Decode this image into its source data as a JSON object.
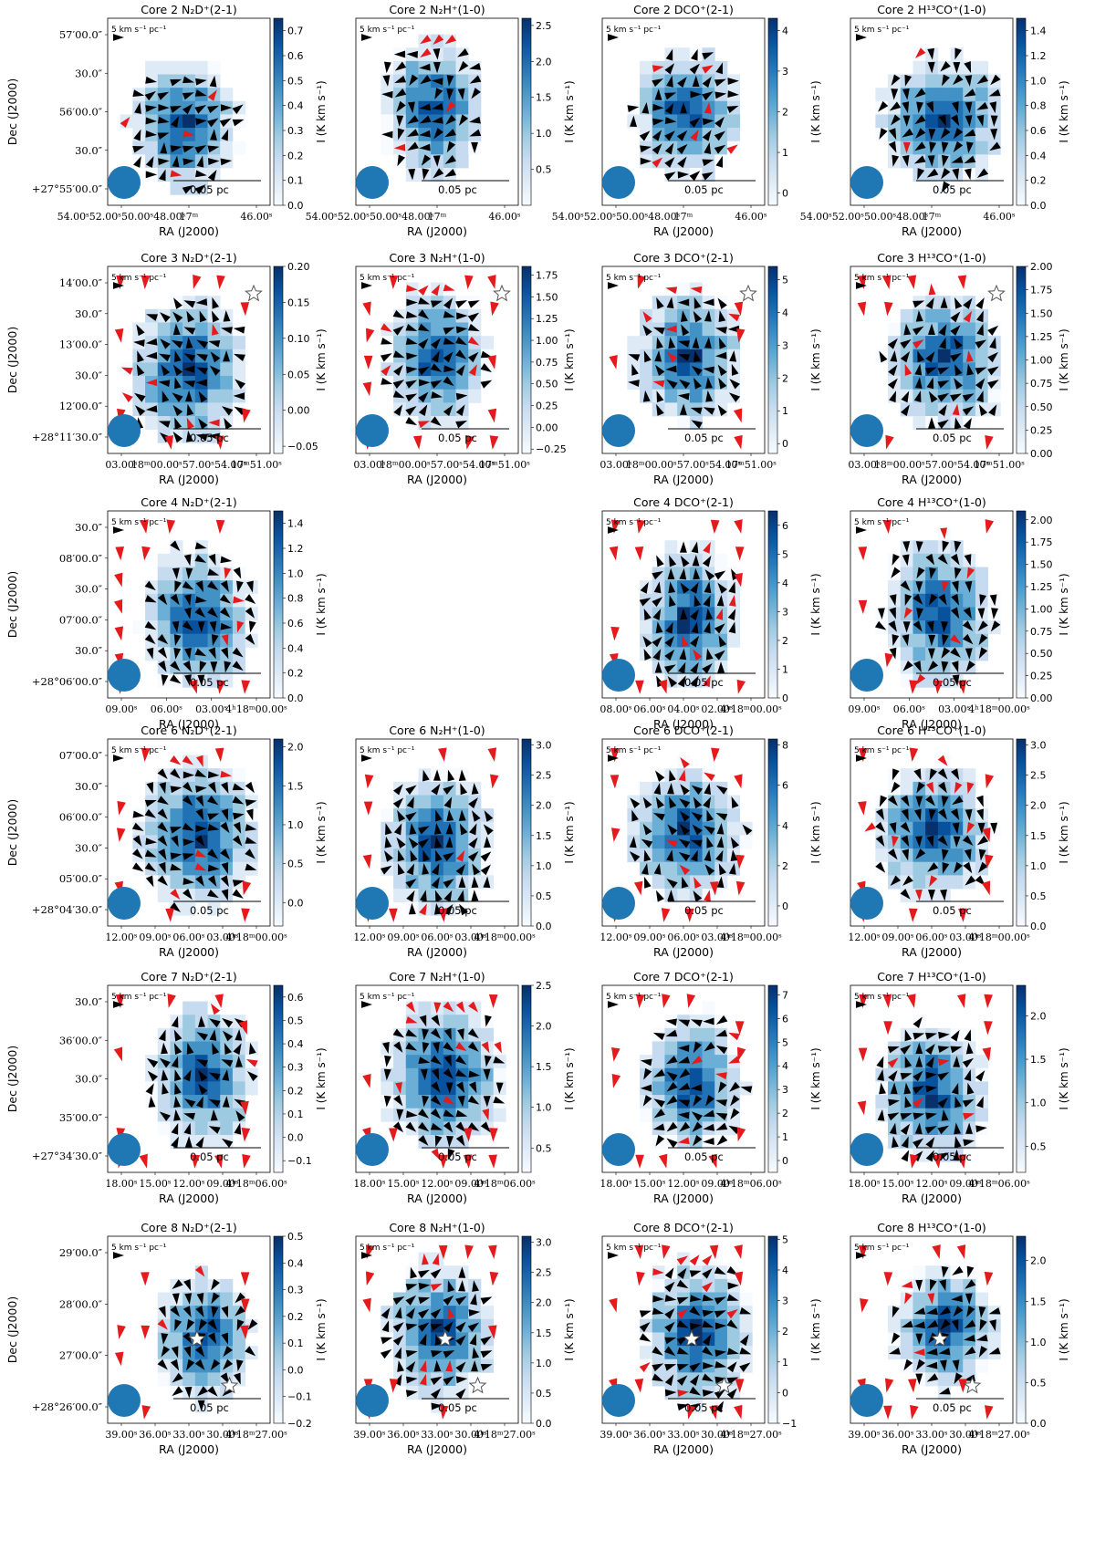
{
  "figure": {
    "colormap": [
      "#f7fbff",
      "#deebf7",
      "#c6dbef",
      "#9ecae1",
      "#6baed6",
      "#4292c6",
      "#2171b5",
      "#08519c",
      "#08306b"
    ],
    "arrow_black": "#000000",
    "arrow_red": "#e41a1c",
    "beam_color": "#1f77b4",
    "scalebar_label": "0.05 pc",
    "ref_vector_label": "5 km s⁻¹ pc⁻¹",
    "colorbar_label": "I (K km s⁻¹)",
    "xlabel": "RA (J2000)",
    "ylabel": "Dec (J2000)"
  },
  "chart_data": [
    {
      "row": 0,
      "col": 0,
      "type": "heatmap",
      "title": "Core 2 N₂D⁺(2-1)",
      "cbar_ticks": [
        "0.0",
        "0.1",
        "0.2",
        "0.3",
        "0.4",
        "0.5",
        "0.6",
        "0.7"
      ],
      "clim": [
        0,
        0.75
      ],
      "xticks": [
        "54.00ˢ52.00ˢ50.00ˢ48.00ˢ",
        "17ᵐ",
        "46.00ˢ"
      ],
      "yticks": [
        "57′00.0″",
        "30.0″",
        "56′00.0″",
        "30.0″",
        "+27°55′00.0″"
      ],
      "star_count": 0
    },
    {
      "row": 0,
      "col": 1,
      "type": "heatmap",
      "title": "Core 2 N₂H⁺(1-0)",
      "cbar_ticks": [
        "0.5",
        "1.0",
        "1.5",
        "2.0",
        "2.5"
      ],
      "clim": [
        0,
        2.6
      ],
      "xticks": [
        "54.00ˢ52.00ˢ50.00ˢ48.00ˢ",
        "17ᵐ",
        "46.00ˢ"
      ],
      "yticks": [],
      "star_count": 0
    },
    {
      "row": 0,
      "col": 2,
      "type": "heatmap",
      "title": "Core 2 DCO⁺(2-1)",
      "cbar_ticks": [
        "0",
        "1",
        "2",
        "3",
        "4"
      ],
      "clim": [
        -0.3,
        4.3
      ],
      "xticks": [
        "54.00ˢ52.00ˢ50.00ˢ48.00ˢ",
        "17ᵐ",
        "46.00ˢ"
      ],
      "yticks": [],
      "star_count": 0
    },
    {
      "row": 0,
      "col": 3,
      "type": "heatmap",
      "title": "Core 2 H¹³CO⁺(1-0)",
      "cbar_ticks": [
        "0.0",
        "0.2",
        "0.4",
        "0.6",
        "0.8",
        "1.0",
        "1.2",
        "1.4"
      ],
      "clim": [
        0,
        1.5
      ],
      "xticks": [
        "54.00ˢ52.00ˢ50.00ˢ48.00ˢ",
        "17ᵐ",
        "46.00ˢ"
      ],
      "yticks": [],
      "star_count": 0
    },
    {
      "row": 1,
      "col": 0,
      "type": "heatmap",
      "title": "Core 3 N₂D⁺(2-1)",
      "cbar_ticks": [
        "−0.05",
        "0.00",
        "0.05",
        "0.10",
        "0.15",
        "0.20"
      ],
      "clim": [
        -0.06,
        0.2
      ],
      "xticks": [
        "03.00ˢ",
        "18ᵐ00.00ˢ57.00ˢ54.00ˢ",
        "17ᵐ51.00ˢ"
      ],
      "yticks": [
        "14′00.0″",
        "30.0″",
        "13′00.0″",
        "30.0″",
        "12′00.0″",
        "+28°11′30.0″"
      ],
      "star_count": 1
    },
    {
      "row": 1,
      "col": 1,
      "type": "heatmap",
      "title": "Core 3 N₂H⁺(1-0)",
      "cbar_ticks": [
        "−0.25",
        "0.00",
        "0.25",
        "0.50",
        "0.75",
        "1.00",
        "1.25",
        "1.50",
        "1.75"
      ],
      "clim": [
        -0.3,
        1.85
      ],
      "xticks": [
        "03.00ˢ",
        "18ᵐ00.00ˢ57.00ˢ54.00ˢ",
        "17ᵐ51.00ˢ"
      ],
      "yticks": [],
      "star_count": 1
    },
    {
      "row": 1,
      "col": 2,
      "type": "heatmap",
      "title": "Core 3 DCO⁺(2-1)",
      "cbar_ticks": [
        "0",
        "1",
        "2",
        "3",
        "4",
        "5"
      ],
      "clim": [
        -0.3,
        5.4
      ],
      "xticks": [
        "03.00ˢ",
        "18ᵐ00.00ˢ57.00ˢ54.00ˢ",
        "17ᵐ51.00ˢ"
      ],
      "yticks": [],
      "star_count": 1
    },
    {
      "row": 1,
      "col": 3,
      "type": "heatmap",
      "title": "Core 3 H¹³CO⁺(1-0)",
      "cbar_ticks": [
        "0.00",
        "0.25",
        "0.50",
        "0.75",
        "1.00",
        "1.25",
        "1.50",
        "1.75",
        "2.00"
      ],
      "clim": [
        0,
        2.0
      ],
      "xticks": [
        "03.00ˢ",
        "18ᵐ00.00ˢ57.00ˢ54.00ˢ",
        "17ᵐ51.00ˢ"
      ],
      "yticks": [],
      "star_count": 1
    },
    {
      "row": 2,
      "col": 0,
      "type": "heatmap",
      "title": "Core 4 N₂D⁺(2-1)",
      "cbar_ticks": [
        "0.0",
        "0.2",
        "0.4",
        "0.6",
        "0.8",
        "1.0",
        "1.2",
        "1.4"
      ],
      "clim": [
        0,
        1.5
      ],
      "xticks": [
        "09.00ˢ",
        "06.00ˢ",
        "03.00ˢ",
        "4ʰ18ᵐ00.00ˢ"
      ],
      "yticks": [
        "30.0″",
        "08′00.0″",
        "30.0″",
        "07′00.0″",
        "30.0″",
        "+28°06′00.0″"
      ],
      "star_count": 0
    },
    {
      "row": 2,
      "col": 2,
      "type": "heatmap",
      "title": "Core 4 DCO⁺(2-1)",
      "cbar_ticks": [
        "0",
        "1",
        "2",
        "3",
        "4",
        "5",
        "6"
      ],
      "clim": [
        0,
        6.5
      ],
      "xticks": [
        "08.00ˢ",
        "06.00ˢ",
        "04.00ˢ",
        "02.00ˢ",
        "4ʰ18ᵐ00.00ˢ"
      ],
      "yticks": [],
      "star_count": 0
    },
    {
      "row": 2,
      "col": 3,
      "type": "heatmap",
      "title": "Core 4 H¹³CO⁺(1-0)",
      "cbar_ticks": [
        "0.00",
        "0.25",
        "0.50",
        "0.75",
        "1.00",
        "1.25",
        "1.50",
        "1.75",
        "2.00"
      ],
      "clim": [
        0,
        2.1
      ],
      "xticks": [
        "09.00ˢ",
        "06.00ˢ",
        "03.00ˢ",
        "4ʰ18ᵐ00.00ˢ"
      ],
      "yticks": [],
      "star_count": 0
    },
    {
      "row": 3,
      "col": 0,
      "type": "heatmap",
      "title": "Core 6 N₂D⁺(2-1)",
      "cbar_ticks": [
        "0.0",
        "0.5",
        "1.0",
        "1.5",
        "2.0"
      ],
      "clim": [
        -0.3,
        2.1
      ],
      "xticks": [
        "12.00ˢ",
        "09.00ˢ",
        "06.00ˢ",
        "03.00ˢ",
        "4ʰ18ᵐ00.00ˢ"
      ],
      "yticks": [
        "07′00.0″",
        "30.0″",
        "06′00.0″",
        "30.0″",
        "05′00.0″",
        "+28°04′30.0″"
      ],
      "star_count": 0
    },
    {
      "row": 3,
      "col": 1,
      "type": "heatmap",
      "title": "Core 6 N₂H⁺(1-0)",
      "cbar_ticks": [
        "0.0",
        "0.5",
        "1.0",
        "1.5",
        "2.0",
        "2.5",
        "3.0"
      ],
      "clim": [
        0,
        3.1
      ],
      "xticks": [
        "12.00ˢ",
        "09.00ˢ",
        "06.00ˢ",
        "03.00ˢ",
        "4ʰ18ᵐ00.00ˢ"
      ],
      "yticks": [],
      "star_count": 0
    },
    {
      "row": 3,
      "col": 2,
      "type": "heatmap",
      "title": "Core 6 DCO⁺(2-1)",
      "cbar_ticks": [
        "0",
        "2",
        "4",
        "6",
        "8"
      ],
      "clim": [
        -1,
        8.3
      ],
      "xticks": [
        "12.00ˢ",
        "09.00ˢ",
        "06.00ˢ",
        "03.00ˢ",
        "4ʰ18ᵐ00.00ˢ"
      ],
      "yticks": [],
      "star_count": 0
    },
    {
      "row": 3,
      "col": 3,
      "type": "heatmap",
      "title": "Core 6 H¹³CO⁺(1-0)",
      "cbar_ticks": [
        "0.0",
        "0.5",
        "1.0",
        "1.5",
        "2.0",
        "2.5",
        "3.0"
      ],
      "clim": [
        0,
        3.1
      ],
      "xticks": [
        "12.00ˢ",
        "09.00ˢ",
        "06.00ˢ",
        "03.00ˢ",
        "4ʰ18ᵐ00.00ˢ"
      ],
      "yticks": [],
      "star_count": 0
    },
    {
      "row": 4,
      "col": 0,
      "type": "heatmap",
      "title": "Core 7 N₂D⁺(2-1)",
      "cbar_ticks": [
        "−0.1",
        "0.0",
        "0.1",
        "0.2",
        "0.3",
        "0.4",
        "0.5",
        "0.6"
      ],
      "clim": [
        -0.15,
        0.65
      ],
      "xticks": [
        "18.00ˢ",
        "15.00ˢ",
        "12.00ˢ",
        "09.00ˢ",
        "4ʰ18ᵐ06.00ˢ"
      ],
      "yticks": [
        "30.0″",
        "36′00.0″",
        "30.0″",
        "35′00.0″",
        "+27°34′30.0″"
      ],
      "star_count": 0
    },
    {
      "row": 4,
      "col": 1,
      "type": "heatmap",
      "title": "Core 7 N₂H⁺(1-0)",
      "cbar_ticks": [
        "0.5",
        "1.0",
        "1.5",
        "2.0",
        "2.5"
      ],
      "clim": [
        0.2,
        2.5
      ],
      "xticks": [
        "18.00ˢ",
        "15.00ˢ",
        "12.00ˢ",
        "09.00ˢ",
        "4ʰ18ᵐ06.00ˢ"
      ],
      "yticks": [],
      "star_count": 0
    },
    {
      "row": 4,
      "col": 2,
      "type": "heatmap",
      "title": "Core 7 DCO⁺(2-1)",
      "cbar_ticks": [
        "0",
        "1",
        "2",
        "3",
        "4",
        "5",
        "6",
        "7"
      ],
      "clim": [
        -0.5,
        7.4
      ],
      "xticks": [
        "18.00ˢ",
        "15.00ˢ",
        "12.00ˢ",
        "09.00ˢ",
        "4ʰ18ᵐ06.00ˢ"
      ],
      "yticks": [],
      "star_count": 0
    },
    {
      "row": 4,
      "col": 3,
      "type": "heatmap",
      "title": "Core 7 H¹³CO⁺(1-0)",
      "cbar_ticks": [
        "0.5",
        "1.0",
        "1.5",
        "2.0"
      ],
      "clim": [
        0.2,
        2.35
      ],
      "xticks": [
        "18.00ˢ",
        "15.00ˢ",
        "12.00ˢ",
        "09.00ˢ",
        "4ʰ18ᵐ06.00ˢ"
      ],
      "yticks": [],
      "star_count": 0
    },
    {
      "row": 5,
      "col": 0,
      "type": "heatmap",
      "title": "Core 8 N₂D⁺(2-1)",
      "cbar_ticks": [
        "−0.2",
        "−0.1",
        "0.0",
        "0.1",
        "0.2",
        "0.3",
        "0.4",
        "0.5"
      ],
      "clim": [
        -0.2,
        0.5
      ],
      "xticks": [
        "39.00ˢ",
        "36.00ˢ",
        "33.00ˢ",
        "30.00ˢ",
        "4ʰ18ᵐ27.00ˢ"
      ],
      "yticks": [
        "29′00.0″",
        "28′00.0″",
        "27′00.0″",
        "+28°26′00.0″"
      ],
      "star_count": 2
    },
    {
      "row": 5,
      "col": 1,
      "type": "heatmap",
      "title": "Core 8 N₂H⁺(1-0)",
      "cbar_ticks": [
        "0.0",
        "0.5",
        "1.0",
        "1.5",
        "2.0",
        "2.5",
        "3.0"
      ],
      "clim": [
        0,
        3.1
      ],
      "xticks": [
        "39.00ˢ",
        "36.00ˢ",
        "33.00ˢ",
        "30.00ˢ",
        "4ʰ18ᵐ27.00ˢ"
      ],
      "yticks": [],
      "star_count": 2
    },
    {
      "row": 5,
      "col": 2,
      "type": "heatmap",
      "title": "Core 8 DCO⁺(2-1)",
      "cbar_ticks": [
        "−1",
        "0",
        "1",
        "2",
        "3",
        "4",
        "5"
      ],
      "clim": [
        -1,
        5.1
      ],
      "xticks": [
        "39.00ˢ",
        "36.00ˢ",
        "33.00ˢ",
        "30.00ˢ",
        "4ʰ18ᵐ27.00ˢ"
      ],
      "yticks": [],
      "star_count": 2
    },
    {
      "row": 5,
      "col": 3,
      "type": "heatmap",
      "title": "Core 8 H¹³CO⁺(1-0)",
      "cbar_ticks": [
        "0.0",
        "0.5",
        "1.0",
        "1.5",
        "2.0"
      ],
      "clim": [
        0,
        2.3
      ],
      "xticks": [
        "39.00ˢ",
        "36.00ˢ",
        "33.00ˢ",
        "30.00ˢ",
        "4ʰ18ᵐ27.00ˢ"
      ],
      "yticks": [],
      "star_count": 2
    }
  ]
}
